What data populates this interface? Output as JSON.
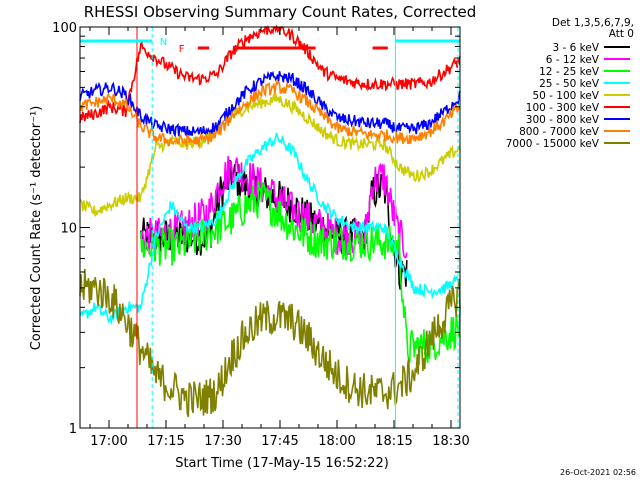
{
  "chart_data": {
    "type": "line",
    "title": "RHESSI Observing Summary Count Rates, Corrected",
    "xlabel": "Start Time (17-May-15 16:52:22)",
    "ylabel": "Corrected Count Rate (s⁻¹ detector⁻¹)",
    "x_unit": "minutes since 16:52:22",
    "xlim": [
      0,
      100
    ],
    "ylim": [
      1,
      100
    ],
    "yscale": "log",
    "x_ticks": [
      "17:00",
      "17:15",
      "17:30",
      "17:45",
      "18:00",
      "18:15",
      "18:30"
    ],
    "y_ticks": [
      "1",
      "10",
      "100"
    ],
    "legend_header": [
      "Det 1,3,5,6,7,9,",
      "Att 0"
    ],
    "legend_position": "outside-right",
    "flags": [
      {
        "name": "N",
        "label": "N",
        "color": "#00ffff",
        "segments": [
          [
            0,
            19
          ],
          [
            83,
            100
          ]
        ]
      },
      {
        "name": "F",
        "label": "F",
        "color": "#ff0000",
        "segments": [
          [
            31,
            34
          ],
          [
            41,
            62
          ],
          [
            77,
            81
          ]
        ]
      }
    ],
    "vlines": [
      {
        "x": 15,
        "style": "solid",
        "color": "#ff0000"
      },
      {
        "x": 19,
        "style": "dashed",
        "color": "#00ffff"
      },
      {
        "x": 83,
        "style": "solid",
        "color": "#00ffff"
      },
      {
        "x": 101,
        "style": "dashed",
        "color": "#00ffff"
      }
    ],
    "series": [
      {
        "name": "3 - 6 keV",
        "color": "#000000",
        "x_range": [
          16,
          86
        ],
        "x": [
          16,
          20,
          28,
          34,
          37,
          40,
          44,
          48,
          52,
          56,
          60,
          64,
          68,
          72,
          75,
          77,
          80,
          84,
          86
        ],
        "y": [
          9,
          9,
          9,
          9,
          15,
          18,
          16,
          15,
          14,
          13,
          11,
          10,
          9,
          9,
          9,
          15,
          16,
          6,
          6
        ]
      },
      {
        "name": "6 - 12 keV",
        "color": "#ff00ff",
        "x_range": [
          16,
          86
        ],
        "x": [
          16,
          20,
          28,
          34,
          37,
          40,
          44,
          48,
          52,
          56,
          60,
          64,
          68,
          72,
          75,
          77,
          80,
          84,
          86
        ],
        "y": [
          9,
          9,
          10,
          12,
          17,
          20,
          18,
          16,
          14,
          12,
          11,
          10,
          9,
          9,
          9,
          17,
          18,
          9,
          8
        ]
      },
      {
        "name": "12 - 25 keV",
        "color": "#00ff00",
        "x_range": [
          16,
          100
        ],
        "x": [
          16,
          20,
          26,
          32,
          36,
          40,
          44,
          48,
          52,
          56,
          60,
          64,
          68,
          72,
          76,
          80,
          84,
          86,
          92,
          100
        ],
        "y": [
          8,
          8,
          8,
          9,
          10,
          11,
          13,
          14,
          12,
          10,
          9,
          8.5,
          8.5,
          8.5,
          8.5,
          8.5,
          8,
          2.5,
          2.6,
          3.2
        ]
      },
      {
        "name": "25 - 50 keV",
        "color": "#00ffff",
        "x_range": [
          0,
          100
        ],
        "x": [
          0,
          4,
          8,
          12,
          16,
          20,
          24,
          28,
          32,
          36,
          40,
          44,
          48,
          52,
          56,
          60,
          64,
          68,
          72,
          76,
          80,
          84,
          88,
          92,
          96,
          100
        ],
        "y": [
          3.5,
          4,
          3.5,
          4,
          4,
          9,
          13,
          10,
          10,
          11,
          16,
          21,
          25,
          28,
          24,
          17,
          13,
          11,
          10,
          10,
          10,
          7,
          5,
          4.8,
          5,
          5.5
        ]
      },
      {
        "name": "50 - 100 keV",
        "color": "#cccc00",
        "x_range": [
          0,
          100
        ],
        "x": [
          0,
          4,
          8,
          12,
          16,
          20,
          24,
          28,
          32,
          36,
          40,
          44,
          48,
          52,
          56,
          60,
          64,
          68,
          72,
          76,
          80,
          84,
          88,
          92,
          96,
          100
        ],
        "y": [
          13,
          12,
          13,
          14,
          14,
          25,
          27,
          26,
          27,
          30,
          36,
          40,
          42,
          44,
          40,
          35,
          30,
          27,
          26,
          26,
          26,
          20,
          18,
          19,
          22,
          25
        ]
      },
      {
        "name": "100 - 300 keV",
        "color": "#ff0000",
        "x_range": [
          0,
          100
        ],
        "x": [
          0,
          4,
          8,
          12,
          16,
          20,
          24,
          28,
          32,
          36,
          40,
          44,
          48,
          52,
          56,
          60,
          64,
          68,
          72,
          76,
          80,
          84,
          88,
          92,
          96,
          100
        ],
        "y": [
          35,
          37,
          40,
          38,
          80,
          70,
          62,
          56,
          55,
          58,
          75,
          88,
          96,
          100,
          90,
          75,
          60,
          55,
          53,
          52,
          52,
          52,
          52,
          53,
          60,
          68
        ]
      },
      {
        "name": "300 - 800 keV",
        "color": "#0000ff",
        "x_range": [
          0,
          100
        ],
        "x": [
          0,
          4,
          8,
          12,
          16,
          20,
          24,
          28,
          32,
          36,
          40,
          44,
          48,
          52,
          56,
          60,
          64,
          68,
          72,
          76,
          80,
          84,
          88,
          92,
          96,
          100
        ],
        "y": [
          45,
          48,
          50,
          46,
          36,
          32,
          31,
          30,
          30,
          32,
          40,
          48,
          54,
          57,
          55,
          48,
          40,
          35,
          34,
          33,
          33,
          31,
          31,
          33,
          38,
          45
        ]
      },
      {
        "name": "800 - 7000 keV",
        "color": "#ff8000",
        "x_range": [
          0,
          100
        ],
        "x": [
          0,
          4,
          8,
          12,
          16,
          20,
          24,
          28,
          32,
          36,
          40,
          44,
          48,
          52,
          56,
          60,
          64,
          68,
          72,
          76,
          80,
          84,
          88,
          92,
          96,
          100
        ],
        "y": [
          40,
          42,
          44,
          41,
          32,
          28,
          27,
          27,
          27,
          29,
          36,
          42,
          48,
          50,
          48,
          42,
          36,
          31,
          30,
          29,
          29,
          28,
          28,
          30,
          34,
          40
        ]
      },
      {
        "name": "7000 - 15000 keV",
        "color": "#808000",
        "x_range": [
          0,
          100
        ],
        "x": [
          0,
          4,
          8,
          12,
          16,
          20,
          24,
          28,
          32,
          36,
          40,
          44,
          48,
          52,
          56,
          60,
          64,
          68,
          72,
          76,
          80,
          84,
          88,
          92,
          96,
          100
        ],
        "y": [
          5,
          5,
          4.5,
          3.5,
          2.5,
          1.8,
          1.6,
          1.4,
          1.4,
          1.5,
          2.3,
          3,
          3.5,
          3.6,
          3.4,
          2.8,
          2.2,
          1.8,
          1.6,
          1.5,
          1.5,
          1.6,
          1.9,
          2.7,
          3.6,
          4.8
        ]
      }
    ]
  },
  "footer": {
    "timestamp": "26-Oct-2021 02:56"
  }
}
